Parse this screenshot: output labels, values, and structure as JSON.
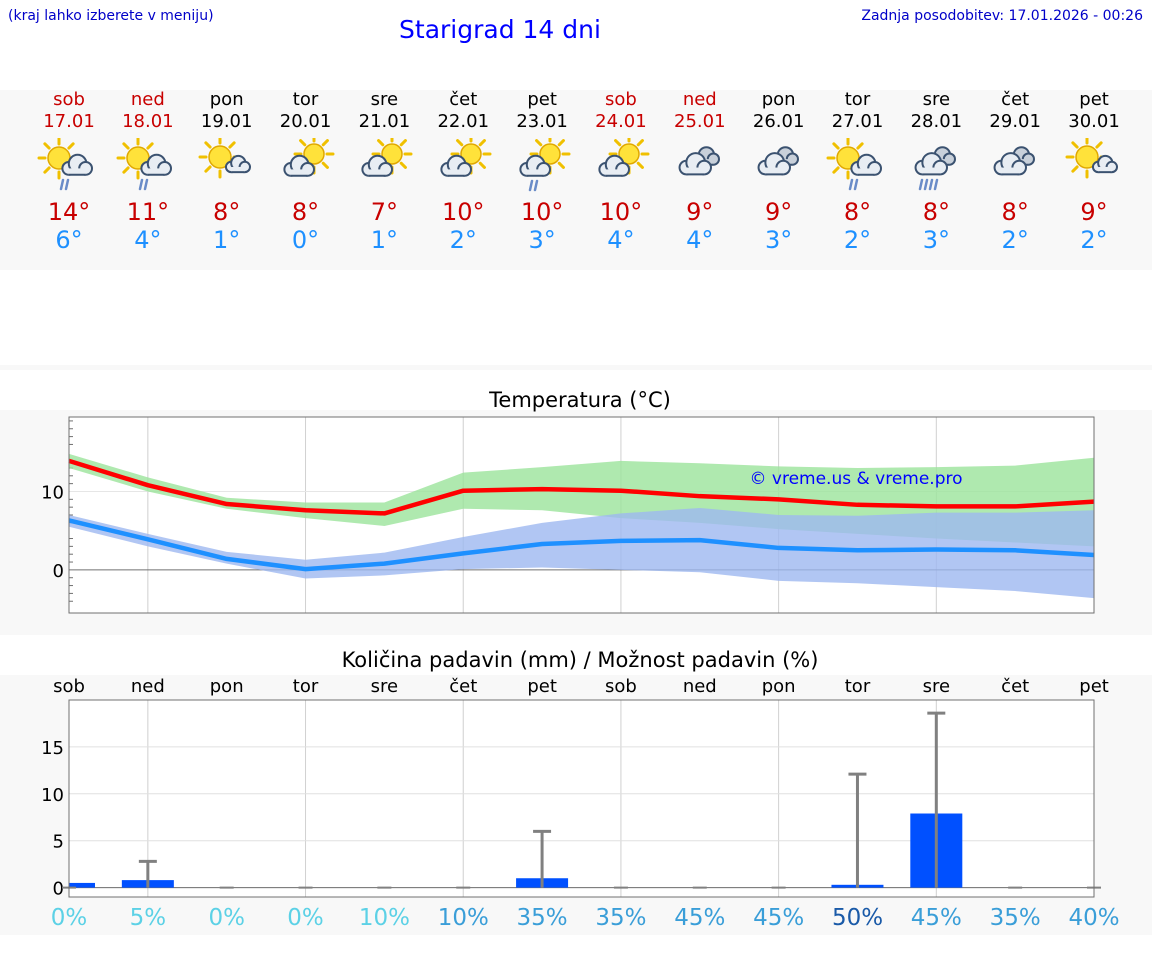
{
  "header": {
    "hint": "(kraj lahko izberete v meniju)",
    "title": "Starigrad 14 dni",
    "updated": "Zadnja posodobitev: 17.01.2026 - 00:26"
  },
  "days": [
    {
      "name": "sob",
      "date": "17.01",
      "weekend": true,
      "icon": "sun-cloud-rain-icon",
      "max": "14°",
      "min": "6°"
    },
    {
      "name": "ned",
      "date": "18.01",
      "weekend": true,
      "icon": "sun-cloud-rain-icon",
      "max": "11°",
      "min": "4°"
    },
    {
      "name": "pon",
      "date": "19.01",
      "weekend": false,
      "icon": "sun-small-cloud-icon",
      "max": "8°",
      "min": "1°"
    },
    {
      "name": "tor",
      "date": "20.01",
      "weekend": false,
      "icon": "cloud-sun-icon",
      "max": "8°",
      "min": "0°"
    },
    {
      "name": "sre",
      "date": "21.01",
      "weekend": false,
      "icon": "cloud-sun-icon",
      "max": "7°",
      "min": "1°"
    },
    {
      "name": "čet",
      "date": "22.01",
      "weekend": false,
      "icon": "cloud-sun-icon",
      "max": "10°",
      "min": "2°"
    },
    {
      "name": "pet",
      "date": "23.01",
      "weekend": false,
      "icon": "cloud-sun-rain-icon",
      "max": "10°",
      "min": "3°"
    },
    {
      "name": "sob",
      "date": "24.01",
      "weekend": true,
      "icon": "cloud-sun-icon",
      "max": "10°",
      "min": "4°"
    },
    {
      "name": "ned",
      "date": "25.01",
      "weekend": true,
      "icon": "cloudy-icon",
      "max": "9°",
      "min": "4°"
    },
    {
      "name": "pon",
      "date": "26.01",
      "weekend": false,
      "icon": "cloudy-icon",
      "max": "9°",
      "min": "3°"
    },
    {
      "name": "tor",
      "date": "27.01",
      "weekend": false,
      "icon": "sun-cloud-rain-icon",
      "max": "8°",
      "min": "2°"
    },
    {
      "name": "sre",
      "date": "28.01",
      "weekend": false,
      "icon": "cloud-heavy-rain-icon",
      "max": "8°",
      "min": "3°"
    },
    {
      "name": "čet",
      "date": "29.01",
      "weekend": false,
      "icon": "cloudy-icon",
      "max": "8°",
      "min": "2°"
    },
    {
      "name": "pet",
      "date": "30.01",
      "weekend": false,
      "icon": "sun-small-cloud-icon",
      "max": "9°",
      "min": "2°"
    }
  ],
  "colors": {
    "max_line": "#ff0000",
    "max_band": "#9be39b",
    "min_line": "#1e90ff",
    "min_band": "#9db8f0",
    "bar": "#0050ff",
    "whisker": "#808080"
  },
  "chart_data": [
    {
      "type": "line",
      "title": "Temperatura (°C)",
      "watermark": "© vreme.us & vreme.pro",
      "x": [
        "sob",
        "ned",
        "pon",
        "tor",
        "sre",
        "čet",
        "pet",
        "sob",
        "ned",
        "pon",
        "tor",
        "sre",
        "čet",
        "pet"
      ],
      "ylim": [
        -5.5,
        19.5
      ],
      "yticks": [
        0,
        10
      ],
      "series": [
        {
          "name": "max",
          "values": [
            13.9,
            10.8,
            8.4,
            7.6,
            7.2,
            10.1,
            10.3,
            10.1,
            9.4,
            9.0,
            8.3,
            8.1,
            8.1,
            8.7
          ]
        },
        {
          "name": "max_band_top",
          "values": [
            14.8,
            11.8,
            9.2,
            8.6,
            8.6,
            12.4,
            13.1,
            13.9,
            13.6,
            13.2,
            13.0,
            13.1,
            13.3,
            14.3
          ]
        },
        {
          "name": "max_band_bottom",
          "values": [
            13.0,
            10.0,
            7.8,
            6.6,
            5.6,
            7.8,
            7.6,
            6.6,
            6.0,
            5.2,
            4.6,
            4.0,
            3.5,
            3.0
          ]
        },
        {
          "name": "min",
          "values": [
            6.3,
            3.9,
            1.4,
            0.1,
            0.8,
            2.1,
            3.3,
            3.7,
            3.8,
            2.8,
            2.5,
            2.6,
            2.5,
            1.9
          ]
        },
        {
          "name": "min_band_top",
          "values": [
            7.0,
            4.6,
            2.3,
            1.3,
            2.2,
            4.2,
            6.0,
            7.2,
            7.9,
            7.0,
            6.9,
            7.3,
            7.3,
            7.6
          ]
        },
        {
          "name": "min_band_bottom",
          "values": [
            5.5,
            3.0,
            0.8,
            -1.1,
            -0.7,
            0.1,
            0.3,
            0.0,
            -0.3,
            -1.4,
            -1.7,
            -2.2,
            -2.7,
            -3.6
          ]
        }
      ]
    },
    {
      "type": "bar",
      "title": "Količina padavin (mm) / Možnost padavin (%)",
      "categories": [
        "sob",
        "ned",
        "pon",
        "tor",
        "sre",
        "čet",
        "pet",
        "sob",
        "ned",
        "pon",
        "tor",
        "sre",
        "čet",
        "pet"
      ],
      "ylim": [
        -1,
        20
      ],
      "yticks": [
        0,
        5,
        10,
        15
      ],
      "values": [
        0.5,
        0.8,
        0,
        0,
        0,
        0,
        1.0,
        0,
        0,
        0,
        0.3,
        7.9,
        0,
        0
      ],
      "whisker_top": [
        0.5,
        2.8,
        0,
        0,
        0,
        0,
        6.0,
        0,
        0,
        0,
        12.1,
        18.6,
        0,
        0
      ],
      "probability": [
        "0%",
        "5%",
        "0%",
        "0%",
        "10%",
        "10%",
        "35%",
        "35%",
        "45%",
        "45%",
        "50%",
        "45%",
        "35%",
        "40%"
      ],
      "probability_colors": [
        "#5cd1e6",
        "#5cd1e6",
        "#5cd1e6",
        "#5cd1e6",
        "#5cd1e6",
        "#3a9ed8",
        "#3a9ed8",
        "#3a9ed8",
        "#3a9ed8",
        "#3a9ed8",
        "#1a5aa8",
        "#3a9ed8",
        "#3a9ed8",
        "#3a9ed8"
      ]
    }
  ]
}
